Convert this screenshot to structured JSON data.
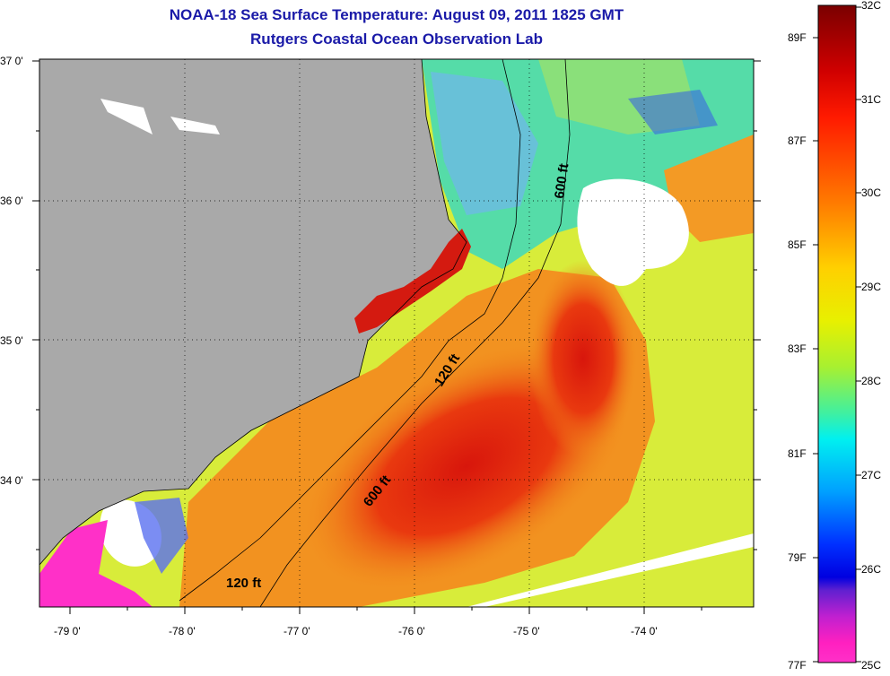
{
  "title": {
    "line1": "NOAA-18 Sea Surface Temperature:  August 09, 2011 1825 GMT",
    "line2": "Rutgers Coastal Ocean Observation Lab"
  },
  "map": {
    "lat_labels": [
      "37 0'",
      "36 0'",
      "35 0'",
      "34 0'"
    ],
    "lon_labels": [
      "-79 0'",
      "-78 0'",
      "-77 0'",
      "-76 0'",
      "-75 0'",
      "-74 0'"
    ],
    "contours": {
      "isobath_120_upper": "120 ft",
      "isobath_600_upper": "600 ft",
      "isobath_120_lower": "120 ft",
      "isobath_600_lower": "600 ft"
    },
    "colors": {
      "land": "#a9a9a9",
      "cloud": "#ffffff",
      "warm": "#e8250e",
      "orange": "#f08a1a",
      "yellow": "#e4ee2a",
      "cool": "#3ad8c0"
    }
  },
  "colorbar": {
    "celsius": [
      "32C",
      "31C",
      "30C",
      "29C",
      "28C",
      "27C",
      "26C",
      "25C"
    ],
    "fahrenheit": [
      "89F",
      "87F",
      "85F",
      "83F",
      "81F",
      "79F",
      "77F"
    ]
  }
}
